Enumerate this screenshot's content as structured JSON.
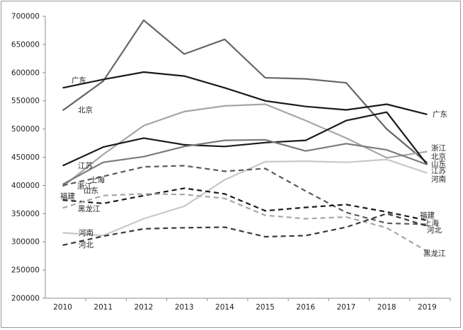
{
  "chart_data": {
    "type": "line",
    "title": "",
    "xlabel": "",
    "ylabel": "",
    "ylim": [
      200000,
      700000
    ],
    "yticks": [
      "200000",
      "250000",
      "300000",
      "350000",
      "400000",
      "450000",
      "500000",
      "550000",
      "600000",
      "650000",
      "700000"
    ],
    "categories": [
      "2010",
      "2011",
      "2012",
      "2013",
      "2014",
      "2015",
      "2016",
      "2017",
      "2018",
      "2019"
    ],
    "grid": false,
    "legend": "none (series labelled directly on the lines)",
    "series": [
      {
        "name": "北京",
        "color": "#666666",
        "dash": "solid",
        "values": [
          533000,
          585000,
          693000,
          633000,
          659000,
          591000,
          589000,
          582000,
          500000,
          440000
        ]
      },
      {
        "name": "广东",
        "color": "#1a1a1a",
        "dash": "solid",
        "values": [
          573000,
          588000,
          601000,
          594000,
          573000,
          550000,
          540000,
          534000,
          544000,
          526000
        ]
      },
      {
        "name": "浙江",
        "color": "#a6a6a6",
        "dash": "solid",
        "values": [
          398000,
          455000,
          506000,
          531000,
          541000,
          544000,
          515000,
          484000,
          449000,
          460000
        ]
      },
      {
        "name": "江苏",
        "color": "#1a1a1a",
        "dash": "solid",
        "values": [
          435000,
          468000,
          484000,
          472000,
          469000,
          476000,
          480000,
          515000,
          530000,
          437000
        ]
      },
      {
        "name": "山东",
        "color": "#7a7a7a",
        "dash": "solid",
        "values": [
          402000,
          441000,
          451000,
          469000,
          480000,
          481000,
          461000,
          474000,
          463000,
          437000
        ]
      },
      {
        "name": "河南",
        "color": "#c8c8c8",
        "dash": "solid",
        "values": [
          316000,
          311000,
          341000,
          363000,
          410000,
          442000,
          443000,
          441000,
          446000,
          422000
        ]
      },
      {
        "name": "上海",
        "color": "#5a5a5a",
        "dash": "dashed",
        "values": [
          400000,
          416000,
          433000,
          435000,
          425000,
          430000,
          390000,
          352000,
          333000,
          331000
        ]
      },
      {
        "name": "福建",
        "color": "#1a1a1a",
        "dash": "dashed",
        "values": [
          374000,
          368000,
          382000,
          395000,
          385000,
          355000,
          361000,
          366000,
          353000,
          338000
        ]
      },
      {
        "name": "黑龙江",
        "color": "#a6a6a6",
        "dash": "dashed",
        "values": [
          360000,
          382000,
          385000,
          384000,
          377000,
          347000,
          341000,
          344000,
          325000,
          283000
        ]
      },
      {
        "name": "河北",
        "color": "#3a3a3a",
        "dash": "dashed",
        "values": [
          294000,
          310000,
          323000,
          325000,
          326000,
          309000,
          311000,
          326000,
          350000,
          328000
        ]
      }
    ],
    "start_labels": [
      "广东",
      "北京",
      "江苏",
      "上海",
      "浙江",
      "山东",
      "福建",
      "黑龙江",
      "河南",
      "河北"
    ],
    "end_labels": [
      "广东",
      "浙江",
      "北京",
      "山东",
      "江苏",
      "河南",
      "福建",
      "上海",
      "河北",
      "黑龙江"
    ]
  }
}
